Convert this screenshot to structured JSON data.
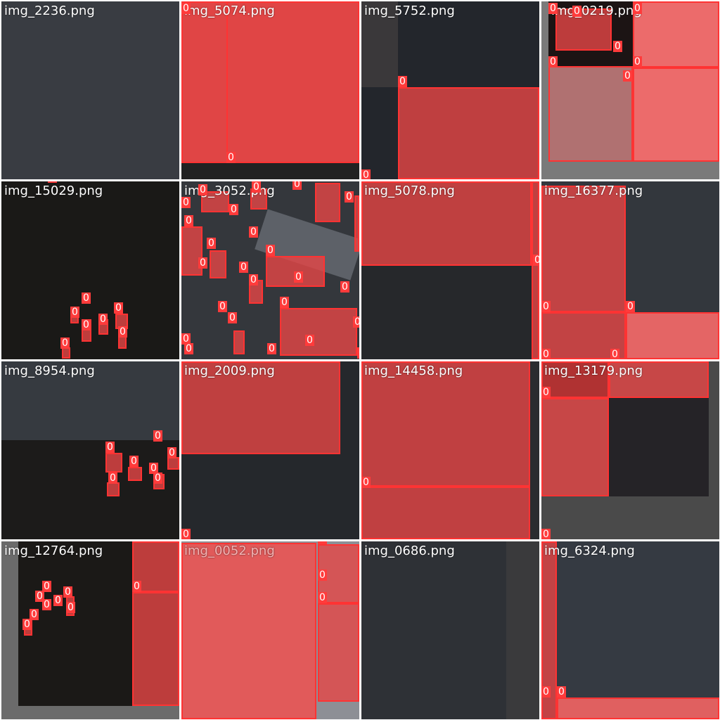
{
  "mosaic": {
    "tiles": [
      {
        "id": "t0",
        "label": "img_2236.png"
      },
      {
        "id": "t1",
        "label": "img_5074.png"
      },
      {
        "id": "t2",
        "label": "img_5752.png"
      },
      {
        "id": "t3",
        "label": "img_0219.png"
      },
      {
        "id": "t4",
        "label": "img_15029.png"
      },
      {
        "id": "t5",
        "label": "img_3052.png"
      },
      {
        "id": "t6",
        "label": "img_5078.png"
      },
      {
        "id": "t7",
        "label": "img_16377.png"
      },
      {
        "id": "t8",
        "label": "img_8954.png"
      },
      {
        "id": "t9",
        "label": "img_2009.png"
      },
      {
        "id": "t10",
        "label": "img_14458.png"
      },
      {
        "id": "t11",
        "label": "img_13179.png"
      },
      {
        "id": "t12",
        "label": "img_12764.png"
      },
      {
        "id": "t13",
        "label": "img_0052.png"
      },
      {
        "id": "t14",
        "label": "img_0686.png"
      },
      {
        "id": "t15",
        "label": "img_6324.png"
      }
    ],
    "class_label": "0",
    "colors": {
      "box_edge": "#ff3333",
      "box_fill": "#e64646",
      "tag_bg": "#ff3b3b"
    }
  }
}
